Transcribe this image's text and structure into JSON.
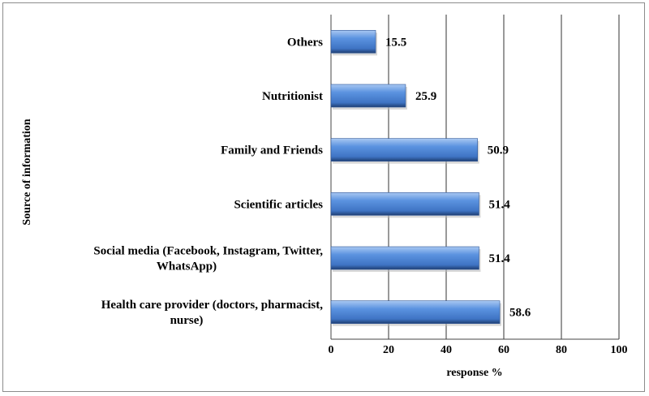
{
  "chart_data": {
    "type": "bar",
    "orientation": "horizontal",
    "categories": [
      [
        "Others"
      ],
      [
        "Nutritionist"
      ],
      [
        "Family and Friends"
      ],
      [
        "Scientific articles"
      ],
      [
        "Social media (Facebook, Instagram, Twitter,",
        "WhatsApp)"
      ],
      [
        "Health care provider (doctors, pharmacist,",
        "nurse)"
      ]
    ],
    "values": [
      15.5,
      25.9,
      50.9,
      51.4,
      51.4,
      58.6
    ],
    "value_labels": [
      "15.5",
      "25.9",
      "50.9",
      "51.4",
      "51.4",
      "58.6"
    ],
    "xlabel": "response %",
    "ylabel": "Source of information",
    "xlim": [
      0,
      100
    ],
    "xticks": [
      0,
      20,
      40,
      60,
      80,
      100
    ],
    "xtick_labels": [
      "0",
      "20",
      "40",
      "60",
      "80",
      "100"
    ],
    "grid": "vertical",
    "bar_color": "#5b93e0"
  }
}
